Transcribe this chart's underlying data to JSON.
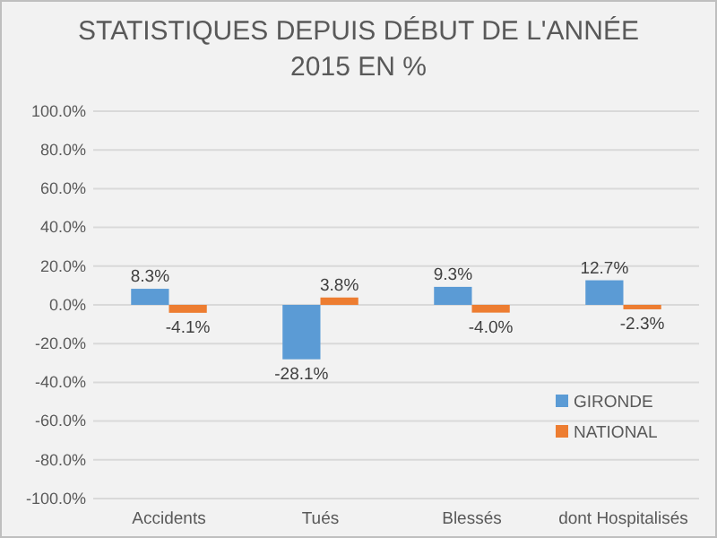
{
  "chart_data": {
    "type": "bar",
    "title": "STATISTIQUES DEPUIS DÉBUT DE L'ANNÉE\n2015 EN %",
    "categories": [
      "Accidents",
      "Tués",
      "Blessés",
      "dont Hospitalisés"
    ],
    "series": [
      {
        "name": "GIRONDE",
        "color": "#5b9bd5",
        "values": [
          8.3,
          -28.1,
          9.3,
          12.7
        ],
        "value_labels": [
          "8.3%",
          "-28.1%",
          "9.3%",
          "12.7%"
        ]
      },
      {
        "name": "NATIONAL",
        "color": "#ed7d31",
        "values": [
          -4.1,
          3.8,
          -4.0,
          -2.3
        ],
        "value_labels": [
          "-4.1%",
          "3.8%",
          "-4.0%",
          "-2.3%"
        ]
      }
    ],
    "ylim": [
      -100,
      100
    ],
    "yticks": [
      {
        "value": -100,
        "label": "-100.0%"
      },
      {
        "value": -80,
        "label": "-80.0%"
      },
      {
        "value": -60,
        "label": "-60.0%"
      },
      {
        "value": -40,
        "label": "-40.0%"
      },
      {
        "value": -20,
        "label": "-20.0%"
      },
      {
        "value": 0,
        "label": "0.0%"
      },
      {
        "value": 20,
        "label": "20.0%"
      },
      {
        "value": 40,
        "label": "40.0%"
      },
      {
        "value": 60,
        "label": "60.0%"
      },
      {
        "value": 80,
        "label": "80.0%"
      },
      {
        "value": 100,
        "label": "100.0%"
      }
    ],
    "grid": "y",
    "legend": "bottom right"
  }
}
